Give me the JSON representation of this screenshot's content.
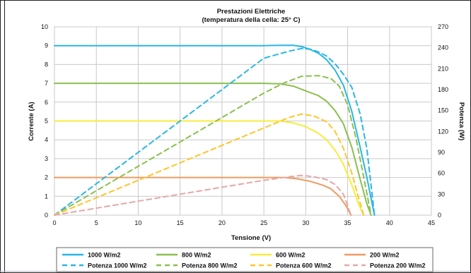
{
  "chart_data": {
    "type": "line",
    "title": "Prestazioni Elettriche",
    "subtitle": "(temperatura della cella: 25° C)",
    "xlabel": "Tensione (V)",
    "ylabel": "Corrente (A)",
    "y2label": "Potenza (W)",
    "xlim": [
      0,
      45
    ],
    "ylim": [
      0,
      10
    ],
    "y2lim": [
      0,
      270
    ],
    "xticks": [
      "0",
      "5",
      "10",
      "15",
      "20",
      "25",
      "30",
      "35",
      "40",
      "45"
    ],
    "yticks": [
      "0",
      "1",
      "2",
      "3",
      "4",
      "5",
      "6",
      "7",
      "8",
      "9",
      "10"
    ],
    "y2ticks": [
      "0",
      "30",
      "60",
      "90",
      "120",
      "150",
      "180",
      "210",
      "240",
      "270"
    ],
    "grid": true,
    "legend_position": "bottom",
    "series": [
      {
        "name": "1000 W/m2",
        "axis": "left",
        "style": "solid",
        "color": "#29b6e6",
        "x": [
          0,
          5,
          10,
          15,
          20,
          25,
          27,
          28.5,
          29.5,
          30.5,
          31.5,
          32.5,
          33.5,
          34.5,
          35.5,
          36.5,
          37.3,
          38.2
        ],
        "y": [
          9.0,
          9.0,
          9.0,
          9.0,
          9.0,
          9.0,
          9.02,
          9.02,
          8.95,
          8.8,
          8.6,
          8.25,
          7.7,
          6.9,
          5.5,
          3.6,
          2.0,
          0
        ]
      },
      {
        "name": "800 W/m2",
        "axis": "left",
        "style": "solid",
        "color": "#8cbf4f",
        "x": [
          0,
          5,
          10,
          15,
          20,
          25,
          27,
          28.5,
          30,
          31.5,
          32.5,
          33.5,
          34.5,
          35.5,
          36.5,
          37.3,
          37.8
        ],
        "y": [
          7.0,
          7.0,
          7.0,
          7.0,
          7.0,
          7.0,
          6.97,
          6.85,
          6.6,
          6.35,
          6.05,
          5.55,
          4.85,
          3.6,
          1.9,
          0.6,
          0
        ]
      },
      {
        "name": "600 W/m2",
        "axis": "left",
        "style": "solid",
        "color": "#f7ec3c",
        "x": [
          0,
          5,
          10,
          15,
          20,
          25,
          27,
          28.5,
          30,
          31.5,
          32.5,
          33.5,
          34.5,
          35.5,
          36.3,
          36.9
        ],
        "y": [
          5.0,
          5.0,
          5.0,
          5.0,
          5.0,
          5.0,
          5.0,
          4.9,
          4.7,
          4.35,
          4.0,
          3.45,
          2.7,
          1.6,
          0.6,
          0
        ]
      },
      {
        "name": "200 W/m2",
        "axis": "left",
        "style": "solid",
        "color": "#ef9a62",
        "x": [
          0,
          5,
          10,
          15,
          20,
          25,
          27.5,
          29,
          30.5,
          32,
          33,
          34,
          34.8,
          35.4
        ],
        "y": [
          2.0,
          2.0,
          2.0,
          2.0,
          2.0,
          2.0,
          2.0,
          1.93,
          1.8,
          1.6,
          1.4,
          1.0,
          0.5,
          0
        ]
      },
      {
        "name": "Potenza 1000 W/m2",
        "axis": "right",
        "style": "dashed",
        "color": "#29b6e6",
        "x": [
          0,
          5,
          10,
          15,
          20,
          25,
          28,
          29.5,
          30.5,
          31.5,
          32.5,
          33.5,
          34.5,
          35.5,
          36.5,
          37.3,
          38.2
        ],
        "y": [
          0,
          45,
          90,
          135,
          180,
          225,
          235,
          239,
          238,
          234,
          228,
          217,
          202,
          183,
          145,
          95,
          0
        ]
      },
      {
        "name": "Potenza 800 W/m2",
        "axis": "right",
        "style": "dashed",
        "color": "#8cbf4f",
        "x": [
          0,
          5,
          10,
          15,
          20,
          25,
          27.5,
          29.5,
          31.5,
          33,
          34,
          35,
          36,
          37,
          37.8
        ],
        "y": [
          0,
          35,
          70,
          105,
          140,
          175,
          190,
          199,
          200,
          196,
          185,
          158,
          110,
          50,
          0
        ]
      },
      {
        "name": "Potenza 600 W/m2",
        "axis": "right",
        "style": "dashed",
        "color": "#ffc52a",
        "x": [
          0,
          5,
          10,
          15,
          20,
          25,
          28,
          29.5,
          31,
          32.5,
          33.5,
          34.5,
          35.5,
          36.3,
          36.9
        ],
        "y": [
          0,
          25,
          50,
          75,
          100,
          125,
          140,
          145,
          142,
          134,
          120,
          96,
          60,
          25,
          0
        ]
      },
      {
        "name": "Potenza 200 W/m2",
        "axis": "right",
        "style": "dashed",
        "color": "#e6a7a8",
        "x": [
          0,
          5,
          10,
          15,
          20,
          25,
          28,
          29.5,
          31,
          32.5,
          33.5,
          34.5,
          35.4
        ],
        "y": [
          0,
          10,
          20,
          30,
          40,
          50,
          55,
          57,
          55,
          51,
          44,
          30,
          0
        ]
      }
    ]
  }
}
